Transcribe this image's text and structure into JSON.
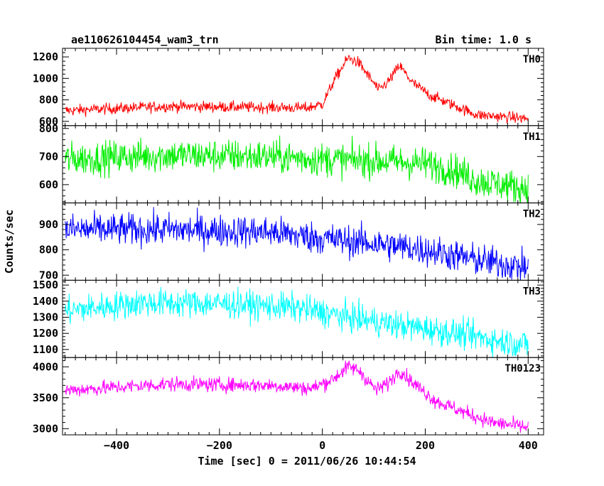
{
  "header": {
    "object_name": "ae110626104454_wam3_trn",
    "bin_time": "Bin time: 1.0 s"
  },
  "chart_data": {
    "type": "line",
    "title": "ae110626104454_wam3_trn",
    "xlabel": "Time [sec] 0 = 2011/06/26 10:44:54",
    "ylabel": "Counts/sec",
    "xlim": [
      -505,
      430
    ],
    "x_ticks": [
      -400,
      -200,
      0,
      200,
      400
    ],
    "x_tick_labels": [
      "−400",
      "−200",
      "0",
      "200",
      "400"
    ],
    "grid": false,
    "panels": [
      {
        "name": "TH0",
        "color": "#ff0000",
        "ylim": [
          560,
          1280
        ],
        "y_ticks": [
          600,
          800,
          1000,
          1200
        ],
        "y_tick_labels": [
          "600",
          "800",
          "1000",
          "1200"
        ],
        "noise": 26,
        "trend": [
          [
            -500,
            700
          ],
          [
            -300,
            740
          ],
          [
            -100,
            730
          ],
          [
            -30,
            725
          ],
          [
            0,
            760
          ],
          [
            25,
            1000
          ],
          [
            50,
            1190
          ],
          [
            70,
            1150
          ],
          [
            110,
            890
          ],
          [
            130,
            980
          ],
          [
            150,
            1120
          ],
          [
            175,
            960
          ],
          [
            210,
            840
          ],
          [
            260,
            740
          ],
          [
            300,
            660
          ],
          [
            400,
            625
          ]
        ]
      },
      {
        "name": "TH1",
        "color": "#00ee00",
        "ylim": [
          535,
          810
        ],
        "y_ticks": [
          600,
          700,
          800
        ],
        "y_tick_labels": [
          "600",
          "700",
          "800"
        ],
        "noise": 30,
        "trend": [
          [
            -500,
            690
          ],
          [
            -300,
            705
          ],
          [
            -100,
            700
          ],
          [
            0,
            690
          ],
          [
            100,
            685
          ],
          [
            200,
            675
          ],
          [
            260,
            650
          ],
          [
            300,
            615
          ],
          [
            400,
            585
          ]
        ]
      },
      {
        "name": "TH2",
        "color": "#0000ff",
        "ylim": [
          680,
          985
        ],
        "y_ticks": [
          700,
          800,
          900
        ],
        "y_tick_labels": [
          "700",
          "800",
          "900"
        ],
        "noise": 32,
        "trend": [
          [
            -500,
            880
          ],
          [
            -300,
            880
          ],
          [
            -100,
            870
          ],
          [
            0,
            845
          ],
          [
            100,
            825
          ],
          [
            200,
            800
          ],
          [
            300,
            760
          ],
          [
            400,
            730
          ]
        ]
      },
      {
        "name": "TH3",
        "color": "#00ffff",
        "ylim": [
          1050,
          1530
        ],
        "y_ticks": [
          1100,
          1200,
          1300,
          1400,
          1500
        ],
        "y_tick_labels": [
          "1100",
          "1200",
          "1300",
          "1400",
          "1500"
        ],
        "noise": 45,
        "trend": [
          [
            -500,
            1340
          ],
          [
            -350,
            1390
          ],
          [
            -200,
            1385
          ],
          [
            -50,
            1360
          ],
          [
            50,
            1300
          ],
          [
            150,
            1250
          ],
          [
            200,
            1230
          ],
          [
            280,
            1190
          ],
          [
            350,
            1150
          ],
          [
            400,
            1130
          ]
        ]
      },
      {
        "name": "TH0123",
        "color": "#ff00ff",
        "ylim": [
          2900,
          4150
        ],
        "y_ticks": [
          3000,
          3500,
          4000
        ],
        "y_tick_labels": [
          "3000",
          "3500",
          "4000"
        ],
        "noise": 60,
        "trend": [
          [
            -500,
            3620
          ],
          [
            -300,
            3720
          ],
          [
            -100,
            3700
          ],
          [
            -20,
            3650
          ],
          [
            20,
            3800
          ],
          [
            50,
            4000
          ],
          [
            70,
            3950
          ],
          [
            105,
            3620
          ],
          [
            130,
            3750
          ],
          [
            150,
            3950
          ],
          [
            175,
            3750
          ],
          [
            220,
            3450
          ],
          [
            280,
            3250
          ],
          [
            330,
            3100
          ],
          [
            400,
            3020
          ]
        ]
      }
    ]
  }
}
